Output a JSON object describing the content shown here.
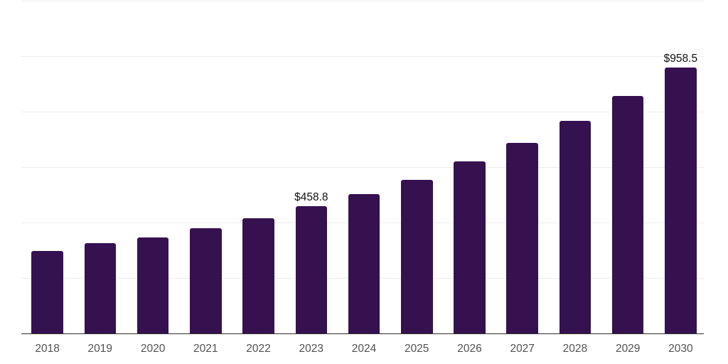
{
  "page": {
    "background_color": "#ffffff"
  },
  "chart_data": {
    "type": "bar",
    "title": "",
    "xlabel": "",
    "ylabel": "",
    "categories": [
      "2018",
      "2019",
      "2020",
      "2021",
      "2022",
      "2023",
      "2024",
      "2025",
      "2026",
      "2027",
      "2028",
      "2029",
      "2030"
    ],
    "values": [
      299,
      327,
      348,
      380,
      415,
      458.8,
      502,
      555,
      620,
      687,
      766,
      856,
      958.5
    ],
    "data_labels": [
      "",
      "",
      "",
      "",
      "",
      "$458.8",
      "",
      "",
      "",
      "",
      "",
      "",
      "$958.5"
    ],
    "ylim": [
      0,
      1200
    ],
    "grid_step": 200,
    "grid": true,
    "legend": false,
    "y_axis_tick_labels_visible": false,
    "colors": {
      "bar": "#361150",
      "gridline": "#ededed",
      "axis_line": "#303030",
      "x_tick_label": "#515151",
      "value_label": "#111111"
    }
  }
}
